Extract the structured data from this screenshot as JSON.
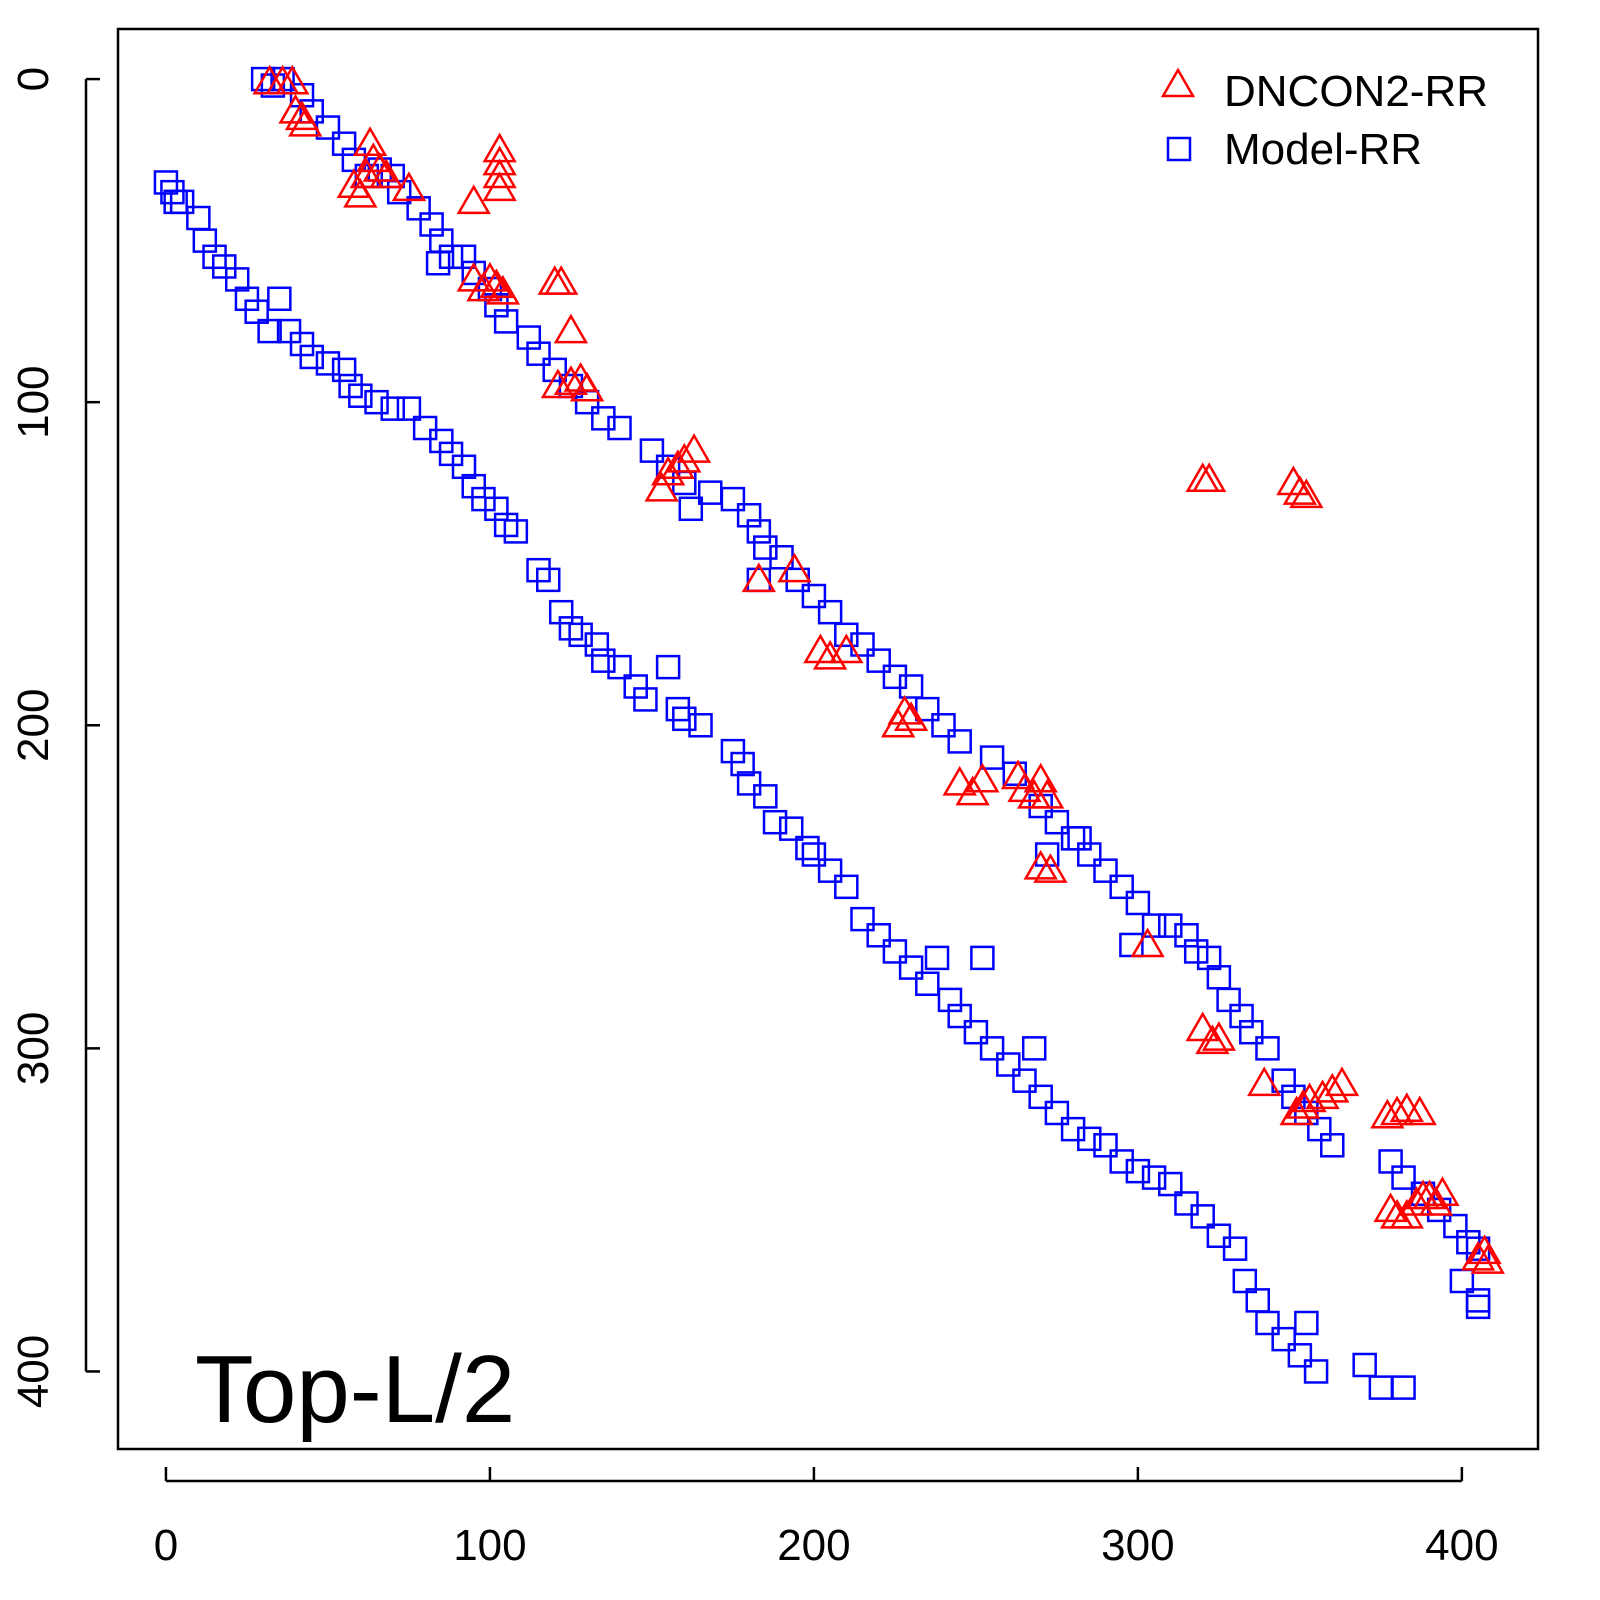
{
  "chart_data": {
    "type": "scatter",
    "title": "",
    "xlabel": "",
    "ylabel": "",
    "xlim": [
      -14.8,
      423.5
    ],
    "ylim": [
      -15.5,
      424
    ],
    "y_inverted": true,
    "xticks": [
      0,
      100,
      200,
      300,
      400
    ],
    "yticks": [
      0,
      100,
      200,
      300,
      400
    ],
    "xtick_labels": [
      "0",
      "100",
      "200",
      "300",
      "400"
    ],
    "ytick_labels": [
      "0",
      "100",
      "200",
      "300",
      "400"
    ],
    "grid": false,
    "legend_position": "top-right",
    "annotation": "Top-L/2",
    "series": [
      {
        "name": "DNCON2-RR",
        "marker": "triangle",
        "color": "#ff0000",
        "points": [
          [
            32,
            1
          ],
          [
            36,
            1
          ],
          [
            39,
            1
          ],
          [
            40,
            10
          ],
          [
            42,
            12
          ],
          [
            43,
            14
          ],
          [
            58,
            33
          ],
          [
            60,
            36
          ],
          [
            62,
            30
          ],
          [
            63,
            20
          ],
          [
            64,
            25
          ],
          [
            66,
            28
          ],
          [
            68,
            30
          ],
          [
            75,
            34
          ],
          [
            95,
            38
          ],
          [
            103,
            22
          ],
          [
            103,
            26
          ],
          [
            103,
            30
          ],
          [
            103,
            34
          ],
          [
            95,
            62
          ],
          [
            98,
            65
          ],
          [
            100,
            62
          ],
          [
            102,
            64
          ],
          [
            104,
            66
          ],
          [
            120,
            63
          ],
          [
            122,
            63
          ],
          [
            125,
            78
          ],
          [
            121,
            95
          ],
          [
            125,
            94
          ],
          [
            128,
            93
          ],
          [
            130,
            96
          ],
          [
            153,
            127
          ],
          [
            155,
            122
          ],
          [
            158,
            120
          ],
          [
            160,
            118
          ],
          [
            163,
            115
          ],
          [
            183,
            155
          ],
          [
            194,
            152
          ],
          [
            202,
            177
          ],
          [
            205,
            179
          ],
          [
            210,
            177
          ],
          [
            226,
            200
          ],
          [
            228,
            196
          ],
          [
            230,
            198
          ],
          [
            245,
            218
          ],
          [
            249,
            221
          ],
          [
            252,
            217
          ],
          [
            263,
            216
          ],
          [
            265,
            220
          ],
          [
            268,
            222
          ],
          [
            270,
            217
          ],
          [
            272,
            222
          ],
          [
            270,
            244
          ],
          [
            273,
            245
          ],
          [
            303,
            268
          ],
          [
            320,
            124
          ],
          [
            322,
            124
          ],
          [
            348,
            125
          ],
          [
            350,
            128
          ],
          [
            352,
            129
          ],
          [
            320,
            294
          ],
          [
            323,
            298
          ],
          [
            325,
            297
          ],
          [
            339,
            311
          ],
          [
            349,
            320
          ],
          [
            351,
            318
          ],
          [
            353,
            316
          ],
          [
            357,
            315
          ],
          [
            360,
            313
          ],
          [
            363,
            311
          ],
          [
            377,
            321
          ],
          [
            380,
            320
          ],
          [
            383,
            319
          ],
          [
            387,
            320
          ],
          [
            378,
            350
          ],
          [
            380,
            352
          ],
          [
            383,
            352
          ],
          [
            386,
            348
          ],
          [
            388,
            346
          ],
          [
            390,
            346
          ],
          [
            392,
            348
          ],
          [
            394,
            345
          ],
          [
            405,
            365
          ],
          [
            407,
            363
          ],
          [
            408,
            366
          ]
        ]
      },
      {
        "name": "Model-RR",
        "marker": "square",
        "color": "#0000ff",
        "points": [
          [
            30,
            0
          ],
          [
            33,
            2
          ],
          [
            36,
            0
          ],
          [
            42,
            5
          ],
          [
            45,
            10
          ],
          [
            50,
            15
          ],
          [
            55,
            20
          ],
          [
            58,
            25
          ],
          [
            62,
            30
          ],
          [
            66,
            28
          ],
          [
            70,
            30
          ],
          [
            72,
            35
          ],
          [
            78,
            40
          ],
          [
            82,
            45
          ],
          [
            85,
            50
          ],
          [
            88,
            55
          ],
          [
            92,
            55
          ],
          [
            95,
            60
          ],
          [
            84,
            57
          ],
          [
            100,
            65
          ],
          [
            102,
            70
          ],
          [
            105,
            75
          ],
          [
            112,
            80
          ],
          [
            115,
            85
          ],
          [
            120,
            90
          ],
          [
            125,
            95
          ],
          [
            130,
            100
          ],
          [
            135,
            105
          ],
          [
            140,
            108
          ],
          [
            150,
            115
          ],
          [
            155,
            120
          ],
          [
            160,
            125
          ],
          [
            162,
            133
          ],
          [
            168,
            128
          ],
          [
            175,
            130
          ],
          [
            180,
            135
          ],
          [
            183,
            140
          ],
          [
            185,
            145
          ],
          [
            190,
            148
          ],
          [
            195,
            155
          ],
          [
            200,
            160
          ],
          [
            205,
            165
          ],
          [
            210,
            172
          ],
          [
            215,
            175
          ],
          [
            220,
            180
          ],
          [
            225,
            185
          ],
          [
            230,
            188
          ],
          [
            235,
            195
          ],
          [
            240,
            200
          ],
          [
            245,
            205
          ],
          [
            255,
            210
          ],
          [
            262,
            215
          ],
          [
            270,
            225
          ],
          [
            275,
            230
          ],
          [
            280,
            235
          ],
          [
            285,
            240
          ],
          [
            290,
            245
          ],
          [
            295,
            250
          ],
          [
            300,
            255
          ],
          [
            305,
            262
          ],
          [
            310,
            262
          ],
          [
            315,
            265
          ],
          [
            318,
            270
          ],
          [
            322,
            272
          ],
          [
            325,
            278
          ],
          [
            328,
            285
          ],
          [
            332,
            290
          ],
          [
            335,
            295
          ],
          [
            340,
            300
          ],
          [
            345,
            310
          ],
          [
            348,
            315
          ],
          [
            352,
            320
          ],
          [
            356,
            325
          ],
          [
            360,
            330
          ],
          [
            378,
            335
          ],
          [
            382,
            340
          ],
          [
            388,
            345
          ],
          [
            393,
            350
          ],
          [
            398,
            355
          ],
          [
            402,
            360
          ],
          [
            405,
            362
          ],
          [
            400,
            372
          ],
          [
            405,
            378
          ],
          [
            405,
            380
          ],
          [
            272,
            240
          ],
          [
            282,
            235
          ],
          [
            298,
            268
          ],
          [
            183,
            155
          ],
          [
            0,
            32
          ],
          [
            2,
            35
          ],
          [
            3,
            38
          ],
          [
            5,
            38
          ],
          [
            10,
            43
          ],
          [
            12,
            50
          ],
          [
            15,
            55
          ],
          [
            18,
            58
          ],
          [
            22,
            62
          ],
          [
            25,
            68
          ],
          [
            28,
            72
          ],
          [
            35,
            68
          ],
          [
            32,
            78
          ],
          [
            38,
            78
          ],
          [
            42,
            82
          ],
          [
            45,
            86
          ],
          [
            50,
            88
          ],
          [
            55,
            90
          ],
          [
            57,
            95
          ],
          [
            60,
            98
          ],
          [
            65,
            100
          ],
          [
            70,
            102
          ],
          [
            75,
            102
          ],
          [
            80,
            108
          ],
          [
            85,
            112
          ],
          [
            88,
            116
          ],
          [
            92,
            120
          ],
          [
            95,
            126
          ],
          [
            98,
            130
          ],
          [
            102,
            133
          ],
          [
            105,
            138
          ],
          [
            108,
            140
          ],
          [
            115,
            152
          ],
          [
            118,
            155
          ],
          [
            122,
            165
          ],
          [
            125,
            170
          ],
          [
            128,
            172
          ],
          [
            133,
            175
          ],
          [
            135,
            180
          ],
          [
            140,
            182
          ],
          [
            145,
            188
          ],
          [
            148,
            192
          ],
          [
            155,
            182
          ],
          [
            158,
            195
          ],
          [
            160,
            198
          ],
          [
            165,
            200
          ],
          [
            175,
            208
          ],
          [
            178,
            212
          ],
          [
            180,
            218
          ],
          [
            185,
            222
          ],
          [
            188,
            230
          ],
          [
            193,
            232
          ],
          [
            198,
            238
          ],
          [
            200,
            240
          ],
          [
            205,
            245
          ],
          [
            210,
            250
          ],
          [
            215,
            260
          ],
          [
            220,
            265
          ],
          [
            225,
            270
          ],
          [
            230,
            275
          ],
          [
            235,
            280
          ],
          [
            238,
            272
          ],
          [
            242,
            285
          ],
          [
            245,
            290
          ],
          [
            250,
            295
          ],
          [
            255,
            300
          ],
          [
            260,
            305
          ],
          [
            265,
            310
          ],
          [
            268,
            300
          ],
          [
            270,
            315
          ],
          [
            275,
            320
          ],
          [
            280,
            325
          ],
          [
            285,
            328
          ],
          [
            290,
            330
          ],
          [
            295,
            335
          ],
          [
            300,
            338
          ],
          [
            305,
            340
          ],
          [
            310,
            342
          ],
          [
            315,
            348
          ],
          [
            320,
            352
          ],
          [
            325,
            358
          ],
          [
            330,
            362
          ],
          [
            333,
            372
          ],
          [
            337,
            378
          ],
          [
            340,
            385
          ],
          [
            345,
            390
          ],
          [
            350,
            395
          ],
          [
            352,
            385
          ],
          [
            355,
            400
          ],
          [
            370,
            398
          ],
          [
            375,
            405
          ],
          [
            382,
            405
          ],
          [
            252,
            272
          ]
        ]
      }
    ]
  }
}
